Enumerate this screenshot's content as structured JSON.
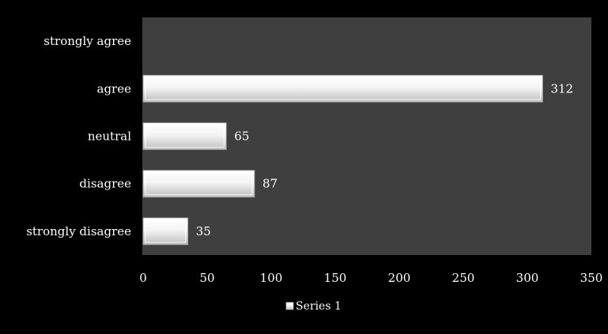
{
  "chart_data": {
    "type": "bar",
    "orientation": "horizontal",
    "categories": [
      "strongly disagree",
      "disagree",
      "neutral",
      "agree",
      "strongly agree"
    ],
    "series": [
      {
        "name": "Series 1",
        "values": [
          35,
          87,
          65,
          312,
          0
        ]
      }
    ],
    "data_labels": [
      "35",
      "87",
      "65",
      "312",
      ""
    ],
    "xlim": [
      0,
      350
    ],
    "xticks": [
      "0",
      "50",
      "100",
      "150",
      "200",
      "250",
      "300",
      "350"
    ],
    "title": "",
    "xlabel": "",
    "ylabel": "",
    "grid": false,
    "legend": {
      "position": "bottom",
      "entries": [
        "Series 1"
      ]
    },
    "colors": {
      "background": "#000000",
      "plot_area": "#3f3f3f",
      "bar_light": "#ffffff",
      "bar_dark": "#c8c8c8",
      "text": "#ffffff"
    }
  }
}
